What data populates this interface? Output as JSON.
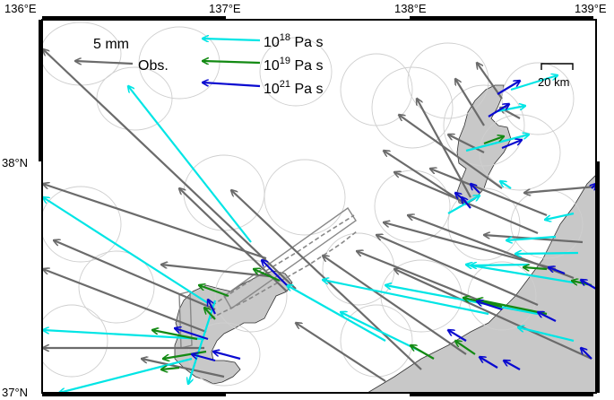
{
  "axes": {
    "lon_ticks": [
      "136°E",
      "137°E",
      "138°E",
      "139°E"
    ],
    "lat_ticks": [
      "38°N",
      "37°N"
    ]
  },
  "legend": {
    "scale_label": "5 mm",
    "obs_label": "Obs.",
    "viscosity": [
      {
        "base": "10",
        "exp": "18",
        "unit": " Pa s",
        "color": "#00e5e5"
      },
      {
        "base": "10",
        "exp": "19",
        "unit": " Pa s",
        "color": "#138a13"
      },
      {
        "base": "10",
        "exp": "21",
        "unit": " Pa s",
        "color": "#0a0ad0"
      }
    ],
    "obs_color": "#6b6b6b"
  },
  "scale_bar": {
    "label": "20 km"
  },
  "colors": {
    "land": "#c8c8c8",
    "coast": "#333333",
    "ellipse": "#cfcfcf",
    "fault": "#888888"
  }
}
